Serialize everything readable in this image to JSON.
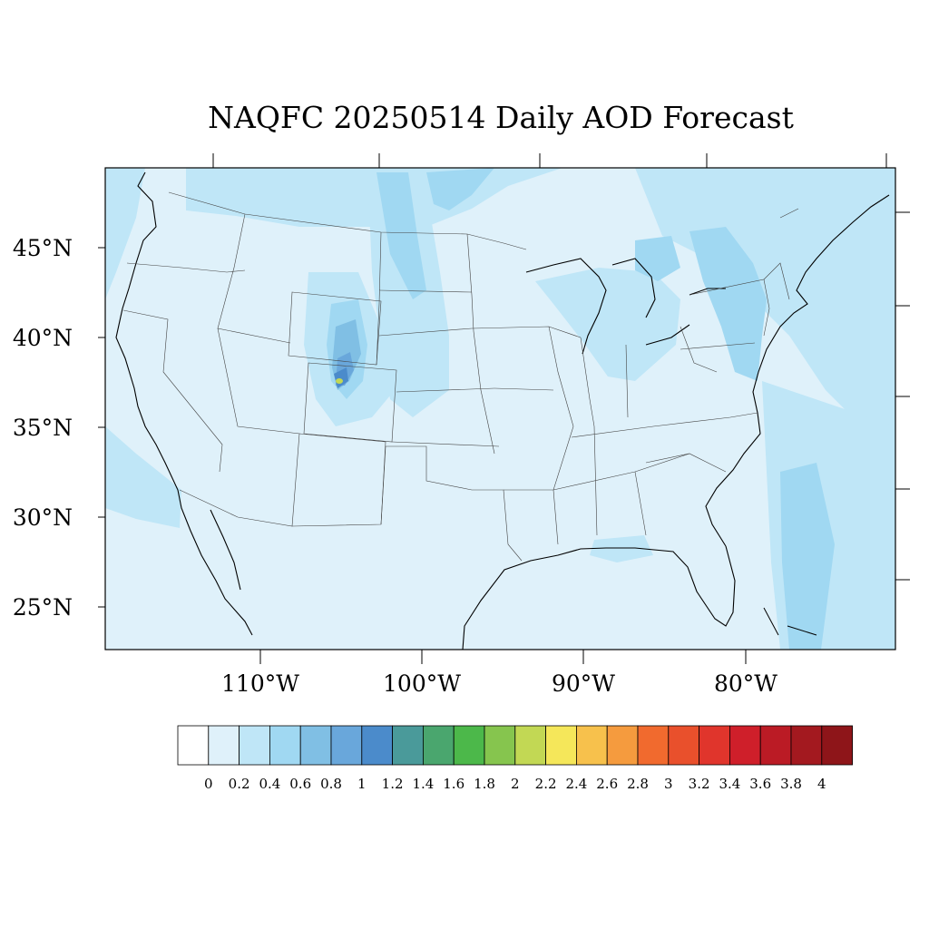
{
  "figure": {
    "title": "NAQFC 20250514 Daily AOD Forecast"
  },
  "map": {
    "lat_labels": [
      "45°N",
      "40°N",
      "35°N",
      "30°N",
      "25°N"
    ],
    "lon_labels": [
      "110°W",
      "100°W",
      "90°W",
      "80°W"
    ],
    "background_color": "#dff1fa"
  },
  "colorbar": {
    "labels": [
      "0",
      "0.2",
      "0.4",
      "0.6",
      "0.8",
      "1",
      "1.2",
      "1.4",
      "1.6",
      "1.8",
      "2",
      "2.2",
      "2.4",
      "2.6",
      "2.8",
      "3",
      "3.2",
      "3.4",
      "3.6",
      "3.8",
      "4"
    ],
    "colors": [
      "#ffffff",
      "#dff1fa",
      "#bfe6f7",
      "#a0d8f2",
      "#80bfe4",
      "#69a7db",
      "#4b8bcb",
      "#4a9a9a",
      "#4aa66e",
      "#4cb84a",
      "#86c54e",
      "#c2d854",
      "#f5e75a",
      "#f7c14c",
      "#f59b3e",
      "#f16a2e",
      "#e9502c",
      "#e0352c",
      "#cf1f2a",
      "#bb1b25",
      "#a3191f",
      "#8e1519"
    ]
  },
  "chart_data": {
    "type": "heatmap",
    "title": "NAQFC 20250514 Daily AOD Forecast",
    "variable": "AOD",
    "date": "20250514",
    "lat_ticks": [
      45,
      40,
      35,
      30,
      25
    ],
    "lon_ticks": [
      -110,
      -100,
      -90,
      -80
    ],
    "contour_levels": [
      0,
      0.2,
      0.4,
      0.6,
      0.8,
      1,
      1.2,
      1.4,
      1.6,
      1.8,
      2,
      2.2,
      2.4,
      2.6,
      2.8,
      3,
      3.2,
      3.4,
      3.6,
      3.8,
      4
    ],
    "value_range": [
      0,
      4
    ]
  }
}
